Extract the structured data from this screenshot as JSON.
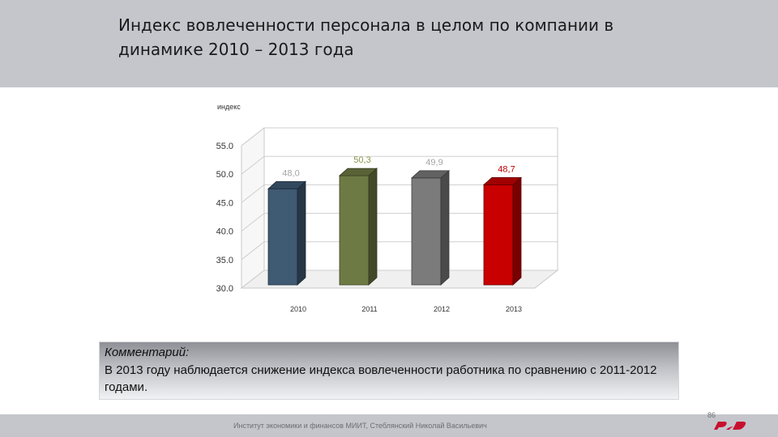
{
  "header": {
    "title": "Индекс вовлеченности персонала в целом по компании в динамике 2010 – 2013 года"
  },
  "chart_data": {
    "type": "bar",
    "ylabel": "индекс",
    "ylim": [
      30,
      55
    ],
    "ytick_labels": [
      "30.0",
      "35.0",
      "40.0",
      "45.0",
      "50.0",
      "55.0"
    ],
    "yticks": [
      30,
      35,
      40,
      45,
      50,
      55
    ],
    "grid": true,
    "categories": [
      "2010",
      "2011",
      "2012",
      "2013"
    ],
    "values": [
      48.0,
      50.3,
      49.9,
      48.7
    ],
    "value_labels": [
      "48,0",
      "50,3",
      "49,9",
      "48,7"
    ],
    "colors": [
      "#3f5a73",
      "#6e7a44",
      "#7b7b7b",
      "#c80000"
    ],
    "label_colors": [
      "#a5a5a5",
      "#8c934c",
      "#a5a5a5",
      "#c00000"
    ]
  },
  "comment": {
    "heading": "Комментарий:",
    "text": "В 2013 году наблюдается снижение индекса вовлеченности работника по сравнению с 2011-2012 годами."
  },
  "footer": {
    "text": "Институт экономики и финансов МИИТ, Стеблянский Николай Васильевич",
    "page_number": "86",
    "logo_icon": "rzd-logo-icon"
  }
}
